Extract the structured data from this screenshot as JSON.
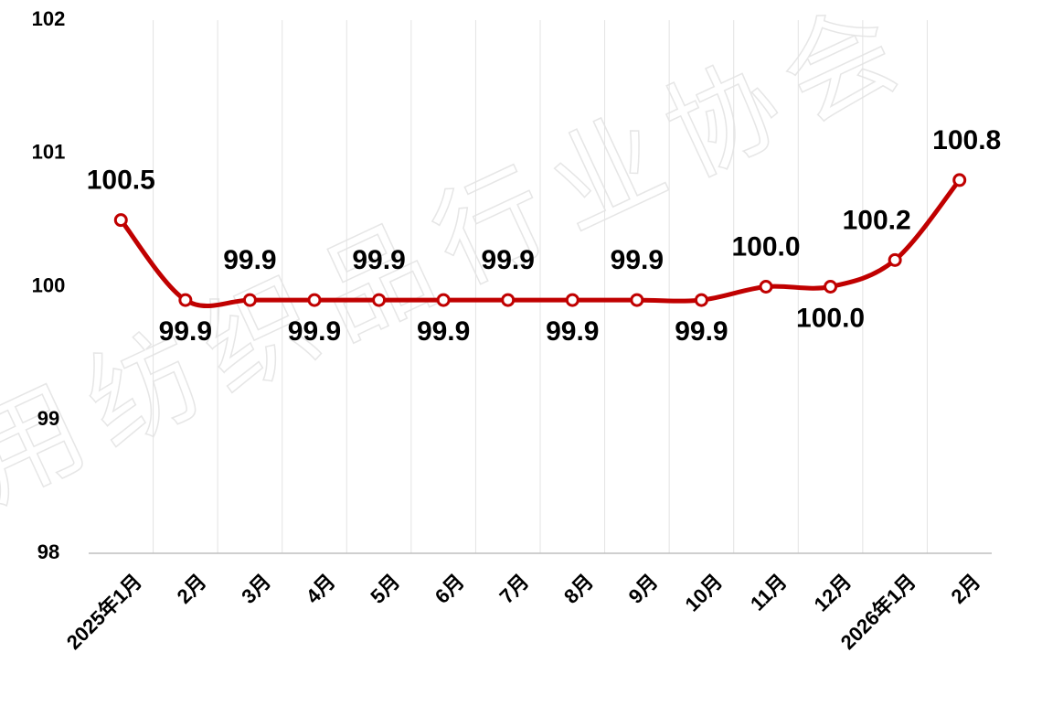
{
  "chart_data": {
    "type": "line",
    "categories": [
      "2025年1月",
      "2月",
      "3月",
      "4月",
      "5月",
      "6月",
      "7月",
      "8月",
      "9月",
      "10月",
      "11月",
      "12月",
      "2026年1月",
      "2月"
    ],
    "series": [
      {
        "name": null,
        "color": "#c00000",
        "values": [
          100.5,
          99.9,
          99.9,
          99.9,
          99.9,
          99.9,
          99.9,
          99.9,
          99.9,
          99.9,
          100.0,
          100.0,
          100.2,
          100.8
        ],
        "value_labels": [
          "100.5",
          "99.9",
          "99.9",
          "99.9",
          "99.9",
          "99.9",
          "99.9",
          "99.9",
          "99.9",
          "99.9",
          "100.0",
          "100.0",
          "100.2",
          "100.8"
        ]
      }
    ],
    "ylim": [
      98,
      102
    ],
    "yticks": [
      98,
      99,
      100,
      101,
      102
    ],
    "grid": "x",
    "watermark": "用纺织品行业协会"
  }
}
